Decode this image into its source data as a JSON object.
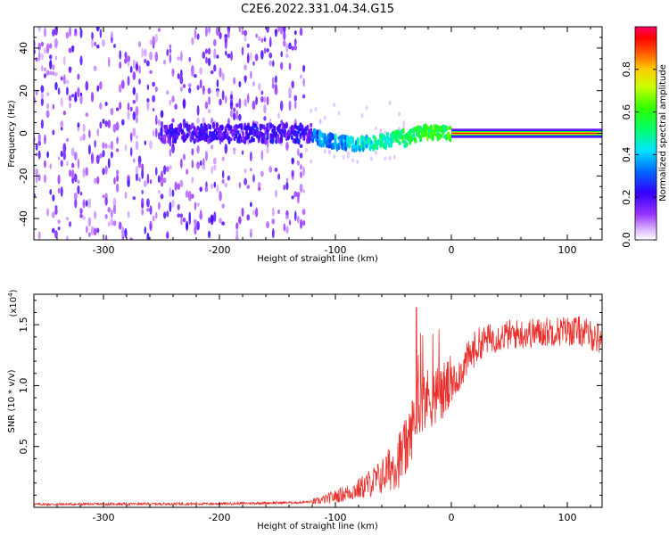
{
  "page": {
    "title": "C2E6.2022.331.04.34.G15"
  },
  "colors": {
    "snr_line": "#e8302c",
    "axis": "#000000",
    "colormap": [
      "#ffffff",
      "#cc99ff",
      "#8000ff",
      "#0000ff",
      "#00ffff",
      "#00ff00",
      "#ffff00",
      "#ff8000",
      "#ff0000",
      "#ff0080"
    ]
  },
  "chart_data": [
    {
      "type": "heatmap",
      "title": "C2E6.2022.331.04.34.G15",
      "xlabel": "Height of straight line (km)",
      "ylabel": "Frequency (Hz)",
      "xlim": [
        -360,
        130
      ],
      "ylim": [
        -50,
        50
      ],
      "x_ticks": [
        -300,
        -200,
        -100,
        0,
        100
      ],
      "y_ticks": [
        -40,
        -20,
        0,
        20,
        40
      ],
      "colorbar": {
        "label": "Normalized spectral amplitude",
        "range": [
          0.0,
          1.0
        ],
        "ticks": [
          "0.0",
          "0.2",
          "0.4",
          "0.6",
          "0.8"
        ]
      },
      "features": {
        "noise_region_x": [
          -360,
          -125
        ],
        "signal_band_center_hz": 0,
        "strong_signal_start_x": 0
      }
    },
    {
      "type": "line",
      "xlabel": "Height of straight line (km)",
      "ylabel": "SNR (10 * v/v)",
      "y_multiplier": "(x10",
      "y_multiplier_exp": "4",
      "xlim": [
        -360,
        130
      ],
      "ylim": [
        0,
        1.75
      ],
      "x_ticks": [
        -300,
        -200,
        -100,
        0,
        100
      ],
      "y_ticks": [
        "0.5",
        "1.0",
        "1.5"
      ],
      "y_tick_values": [
        0.5,
        1.0,
        1.5
      ],
      "series": [
        {
          "key_points_x": [
            -360,
            -200,
            -130,
            -115,
            -100,
            -80,
            -60,
            -50,
            -40,
            -35,
            -32,
            -28,
            -22,
            -15,
            -8,
            0,
            10,
            20,
            30,
            50,
            70,
            90,
            110,
            130
          ],
          "key_points_y": [
            0.025,
            0.03,
            0.04,
            0.05,
            0.09,
            0.15,
            0.25,
            0.35,
            0.45,
            0.6,
            0.75,
            0.85,
            0.9,
            0.9,
            0.95,
            1.0,
            1.15,
            1.3,
            1.38,
            1.42,
            1.43,
            1.45,
            1.45,
            1.38
          ]
        }
      ]
    }
  ]
}
